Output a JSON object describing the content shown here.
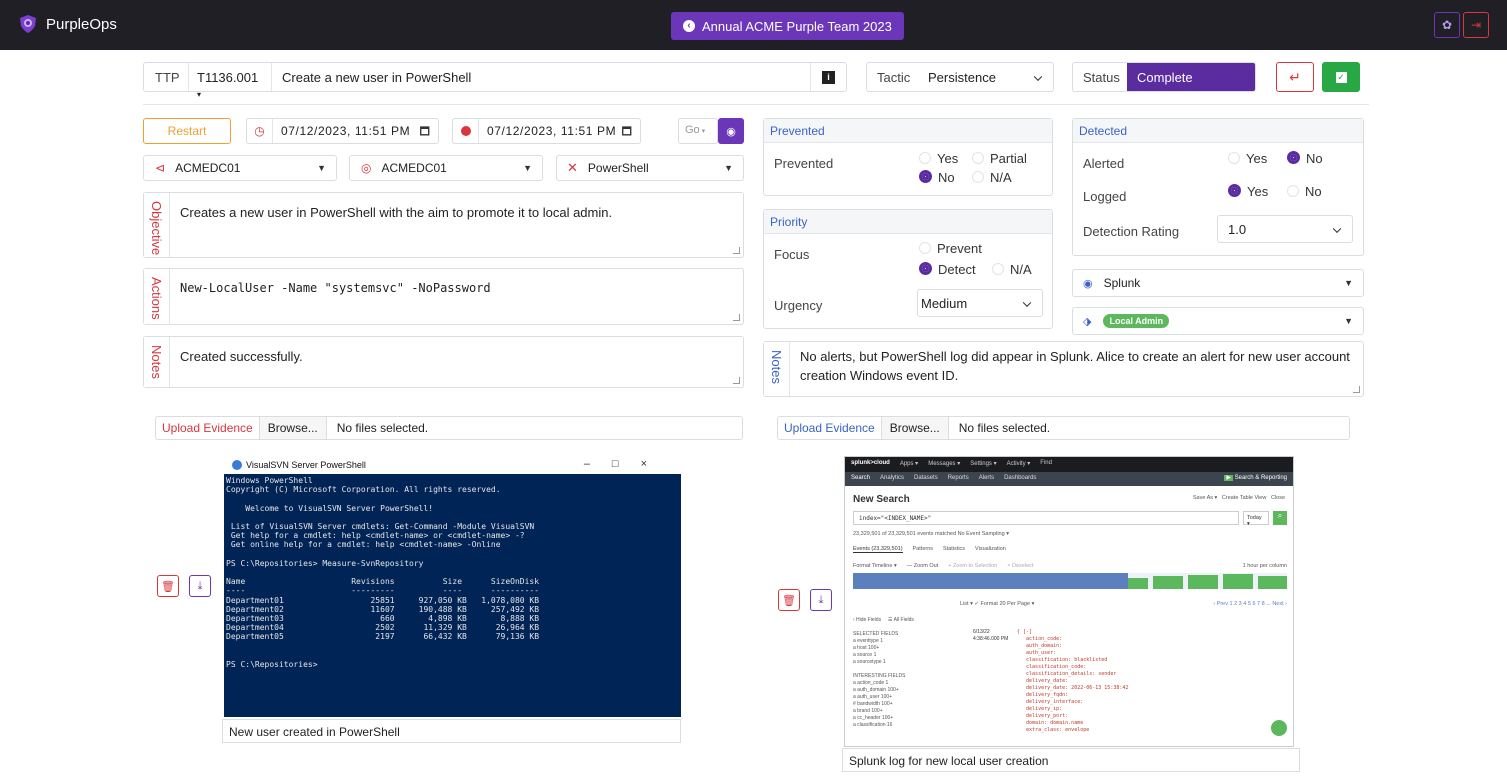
{
  "app": {
    "name": "PurpleOps",
    "engagement": "Annual ACME Purple Team 2023"
  },
  "header": {
    "ttp_label": "TTP",
    "ttp_value": "T1136.001",
    "name": "Create a new user in PowerShell",
    "tactic_label": "Tactic",
    "tactic_value": "Persistence",
    "status_label": "Status",
    "status_value": "Complete"
  },
  "left": {
    "restart_label": "Restart",
    "start_time": "07/12/2023, 11:51 PM",
    "end_time": "07/12/2023, 11:51 PM",
    "go_label": "Go",
    "source_host": "ACMEDC01",
    "target_host": "ACMEDC01",
    "tool": "PowerShell",
    "objective_label": "Objective",
    "objective_text": "Creates a new user in PowerShell with the aim to promote it to local admin.",
    "actions_label": "Actions",
    "actions_text": "New-LocalUser -Name \"systemsvc\" -NoPassword",
    "notes_label": "Notes",
    "notes_text": "Created successfully.",
    "upload_label": "Upload Evidence",
    "browse_label": "Browse...",
    "no_files": "No files selected.",
    "evidence_caption": "New user created in PowerShell"
  },
  "prevented": {
    "title": "Prevented",
    "label": "Prevented",
    "opt_yes": "Yes",
    "opt_partial": "Partial",
    "opt_no": "No",
    "opt_na": "N/A",
    "selected": "No"
  },
  "priority": {
    "title": "Priority",
    "focus_label": "Focus",
    "opt_prevent": "Prevent",
    "opt_detect": "Detect",
    "opt_na": "N/A",
    "selected": "Detect",
    "urgency_label": "Urgency",
    "urgency_value": "Medium"
  },
  "detected": {
    "title": "Detected",
    "alerted_label": "Alerted",
    "logged_label": "Logged",
    "opt_yes": "Yes",
    "opt_no": "No",
    "alerted_selected": "No",
    "logged_selected": "Yes",
    "rating_label": "Detection Rating",
    "rating_value": "1.0",
    "control": "Splunk",
    "tag": "Local Admin"
  },
  "right": {
    "notes_label": "Notes",
    "notes_text": "No alerts, but PowerShell log did appear in Splunk. Alice to create an alert for new user account creation Windows event ID.",
    "upload_label": "Upload Evidence",
    "browse_label": "Browse...",
    "no_files": "No files selected.",
    "evidence_caption": "Splunk log for new local user creation"
  },
  "powershell": {
    "title": "VisualSVN Server PowerShell",
    "lines": "Windows PowerShell\nCopyright (C) Microsoft Corporation. All rights reserved.\n\n    Welcome to VisualSVN Server PowerShell!\n\n List of VisualSVN Server cmdlets: Get-Command -Module VisualSVN\n Get help for a cmdlet: help <cmdlet-name> or <cmdlet-name> -?\n Get online help for a cmdlet: help <cmdlet-name> -Online\n\nPS C:\\Repositories> Measure-SvnRepository\n\nName                      Revisions          Size      SizeOnDisk\n----                      ---------          ----      ----------\nDepartment01                  25851     927,050 KB   1,078,080 KB\nDepartment02                  11607     190,488 KB     257,492 KB\nDepartment03                    660       4,898 KB       8,888 KB\nDepartment04                   2502      11,329 KB      26,964 KB\nDepartment05                   2197      66,432 KB      79,136 KB\n\n\nPS C:\\Repositories>"
  },
  "splunk": {
    "logo": "splunk>cloud",
    "menu": [
      "Apps ▾",
      "Messages ▾",
      "Settings ▾",
      "Activity ▾",
      "Find"
    ],
    "tabs": [
      "Search",
      "Analytics",
      "Datasets",
      "Reports",
      "Alerts",
      "Dashboards"
    ],
    "app_name": "Search & Reporting",
    "page_title": "New Search",
    "actions": [
      "Save As ▾",
      "Create Table View",
      "Close"
    ],
    "query": "index=\"<INDEX_NAME>\"",
    "time_range": "Today ▾",
    "matched": "23,329,501 of 23,329,501 events matched   No Event Sampling ▾",
    "result_tabs": [
      "Events (23,329,501)",
      "Patterns",
      "Statistics",
      "Visualization"
    ],
    "timeline": [
      "Format Timeline ▾",
      "— Zoom Out",
      "+ Zoom to Selection",
      "× Deselect"
    ],
    "per_column": "1 hour per column",
    "list_ctrl": "List ▾   ✓ Format   20 Per Page ▾",
    "pager": "‹ Prev  1  2  3  4  5  6  7  8  ...  Next ›",
    "fields_left": "‹ Hide Fields     ☰ All Fields\n\nSELECTED FIELDS\na eventtype 1\na host 100+\na source 1\na sourcetype 1\n\nINTERESTING FIELDS\na action_code 1\na auth_domain 100+\na auth_user 100+\n# bandwidth 100+\na brand 100+\na cc_header 100+\na classification 16",
    "event_time": "6/13/22\n4:38:46.000 PM",
    "event_body": "{ [-]\n   action_code:\n   auth_domain:\n   auth_user:\n   classification: blacklisted\n   classification_code:\n   classification_details: sender\n   delivery_date:\n   delivery_date: 2022-06-13 15:38:42\n   delivery_fqdn:\n   delivery_interface:\n   delivery_ip:\n   delivery_port:\n   domain: domain.name\n   extra_class: envelope"
  },
  "colors": {
    "purple": "#6b36b8",
    "red": "#d9363e",
    "green": "#28a745",
    "blue": "#3a63c8",
    "orange": "#f0a030"
  }
}
